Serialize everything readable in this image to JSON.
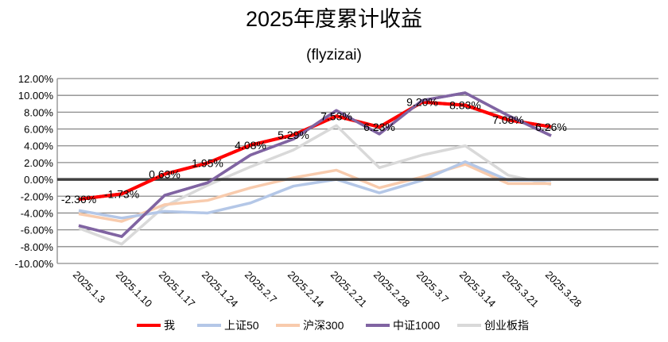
{
  "chart_data": {
    "type": "line",
    "title": "2025年度累计收益",
    "subtitle": "(flyzizai)",
    "xlabel": "",
    "ylabel": "",
    "ylim": [
      -10,
      12
    ],
    "ytick_step": 2,
    "yticks": [
      "12.00%",
      "10.00%",
      "8.00%",
      "6.00%",
      "4.00%",
      "2.00%",
      "0.00%",
      "-2.00%",
      "-4.00%",
      "-6.00%",
      "-8.00%",
      "-10.00%"
    ],
    "grid": true,
    "legend": "bottom",
    "categories": [
      "2025.1.3",
      "2025.1.10",
      "2025.1.17",
      "2025.1.24",
      "2025.2.7",
      "2025.2.14",
      "2025.2.21",
      "2025.2.28",
      "2025.3.7",
      "2025.3.14",
      "2025.3.21",
      "2025.3.28"
    ],
    "series": [
      {
        "name": "我",
        "color": "#ff0000",
        "labels": true,
        "values": [
          -2.36,
          -1.73,
          0.63,
          1.95,
          4.08,
          5.29,
          7.53,
          6.23,
          9.2,
          8.83,
          7.08,
          6.26
        ],
        "data_labels": [
          "-2.36%",
          "-1.73%",
          "0.63%",
          "1.95%",
          "4.08%",
          "5.29%",
          "7.53%",
          "6.23%",
          "9.20%",
          "8.83%",
          "7.08%",
          "6.26%"
        ]
      },
      {
        "name": "上证50",
        "color": "#b4c7e7",
        "values": [
          -3.7,
          -4.6,
          -3.8,
          -4.0,
          -2.8,
          -0.8,
          0.0,
          -1.6,
          -0.1,
          2.1,
          -0.1,
          -0.1
        ]
      },
      {
        "name": "沪深300",
        "color": "#f8cbad",
        "values": [
          -4.1,
          -5.0,
          -3.0,
          -2.5,
          -1.0,
          0.2,
          1.1,
          -1.0,
          0.3,
          1.8,
          -0.5,
          -0.5
        ]
      },
      {
        "name": "中证1000",
        "color": "#8064a2",
        "values": [
          -5.5,
          -6.8,
          -1.9,
          -0.4,
          2.9,
          4.8,
          8.2,
          5.4,
          9.4,
          10.3,
          7.6,
          5.2
        ]
      },
      {
        "name": "创业板指",
        "color": "#d9d9d9",
        "values": [
          -5.8,
          -7.7,
          -3.2,
          -0.7,
          1.5,
          3.5,
          6.4,
          1.4,
          2.9,
          4.0,
          0.5,
          -0.6
        ]
      }
    ]
  }
}
